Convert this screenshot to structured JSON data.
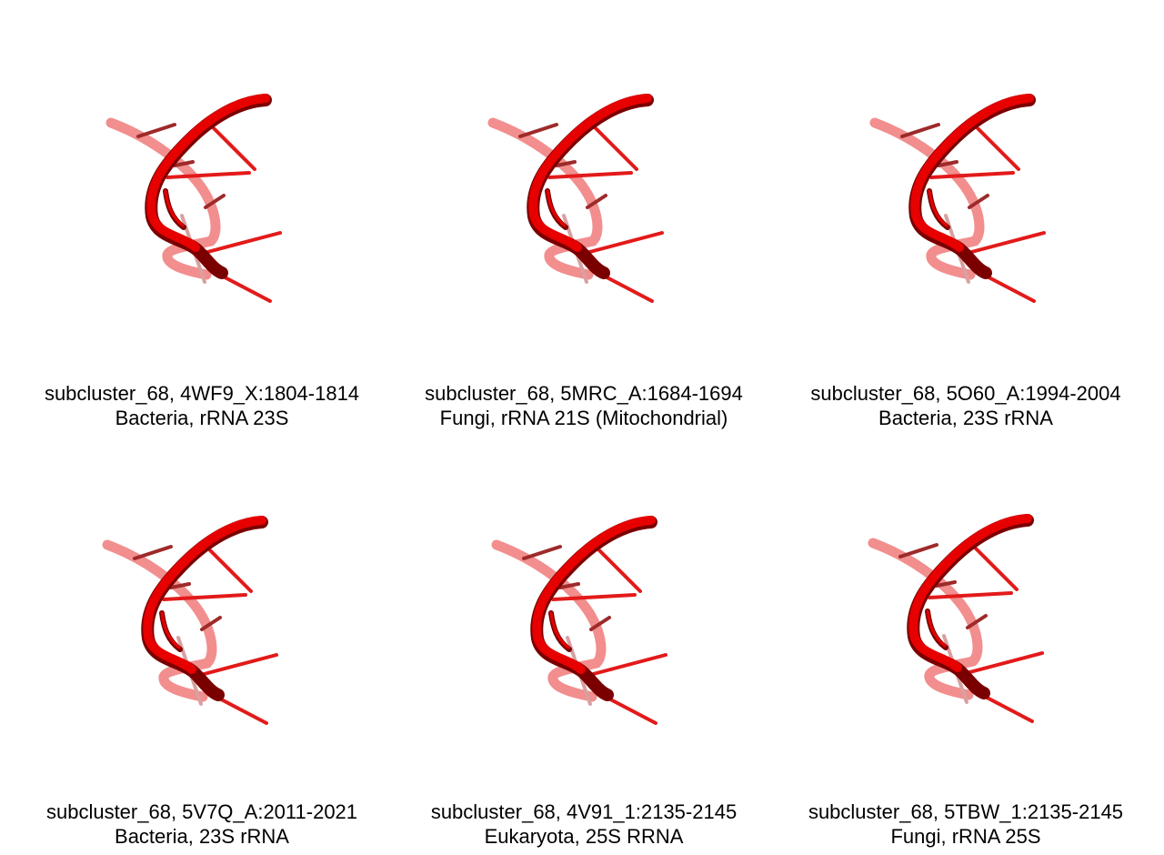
{
  "colors": {
    "background": "#ffffff",
    "strand_front": "#e60000",
    "strand_shadow": "#7a0000",
    "strand_back": "#f07a7a",
    "base_front": "#e31a1a",
    "base_back": "#9e2a2a",
    "caption_text": "#000000"
  },
  "panels": [
    {
      "title": "subcluster_68, 4WF9_X:1804-1814",
      "subtitle": "Bacteria, rRNA 23S"
    },
    {
      "title": "subcluster_68, 5MRC_A:1684-1694",
      "subtitle": "Fungi, rRNA 21S (Mitochondrial)"
    },
    {
      "title": "subcluster_68, 5O60_A:1994-2004",
      "subtitle": "Bacteria, 23S rRNA"
    },
    {
      "title": "subcluster_68, 5V7Q_A:2011-2021",
      "subtitle": "Bacteria, 23S rRNA"
    },
    {
      "title": "subcluster_68, 4V91_1:2135-2145",
      "subtitle": "Eukaryota, 25S RRNA"
    },
    {
      "title": "subcluster_68, 5TBW_1:2135-2145",
      "subtitle": "Fungi, rRNA 25S"
    }
  ]
}
